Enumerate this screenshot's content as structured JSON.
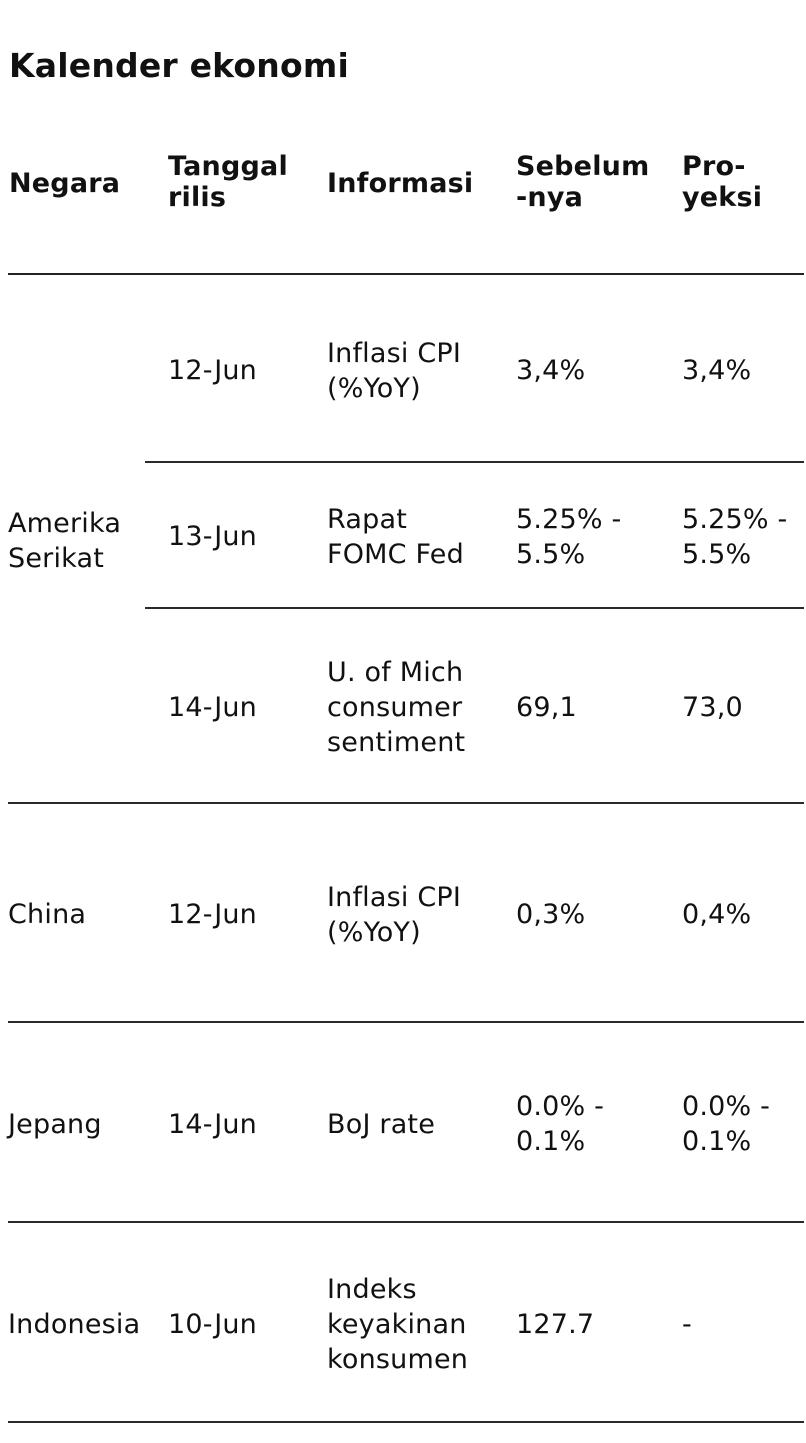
{
  "title": "Kalender ekonomi",
  "table": {
    "headers": {
      "country": "Negara",
      "date": "Tanggal\nrilis",
      "info": "Informasi",
      "previous": "Sebelum\n-nya",
      "projection": "Pro-\nyeksi"
    },
    "groups": [
      {
        "country": "Amerika\nSerikat",
        "rows": [
          {
            "date": "12-Jun",
            "info": "Inflasi CPI\n(%YoY)",
            "previous": "3,4%",
            "projection": "3,4%"
          },
          {
            "date": "13-Jun",
            "info": "Rapat\nFOMC Fed",
            "previous": "5.25% -\n5.5%",
            "projection": "5.25% -\n5.5%"
          },
          {
            "date": "14-Jun",
            "info": "U. of Mich\nconsumer\nsentiment",
            "previous": "69,1",
            "projection": "73,0"
          }
        ]
      },
      {
        "country": "China",
        "rows": [
          {
            "date": "12-Jun",
            "info": "Inflasi CPI\n(%YoY)",
            "previous": "0,3%",
            "projection": "0,4%"
          }
        ]
      },
      {
        "country": "Jepang",
        "rows": [
          {
            "date": "14-Jun",
            "info": "BoJ rate",
            "previous": "0.0% -\n0.1%",
            "projection": "0.0% -\n0.1%"
          }
        ]
      },
      {
        "country": "Indonesia",
        "rows": [
          {
            "date": "10-Jun",
            "info": "Indeks\nkeyakinan\nkonsumen",
            "previous": "127.7",
            "projection": "-"
          }
        ]
      }
    ]
  }
}
